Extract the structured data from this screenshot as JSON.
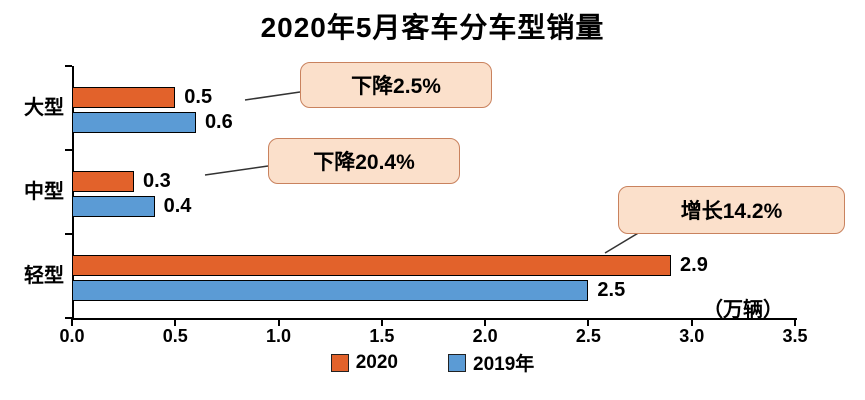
{
  "title": "2020年5月客车分车型销量",
  "chart_data": {
    "type": "bar",
    "orientation": "horizontal",
    "title": "2020年5月客车分车型销量",
    "categories": [
      "大型",
      "中型",
      "轻型"
    ],
    "series": [
      {
        "name": "2020",
        "color": "#E2622B",
        "values": [
          0.5,
          0.3,
          2.9
        ]
      },
      {
        "name": "2019年",
        "color": "#5B9BD5",
        "values": [
          0.6,
          0.4,
          2.5
        ]
      }
    ],
    "xlim": [
      0,
      3.5
    ],
    "x_ticks": [
      "0.0",
      "0.5",
      "1.0",
      "1.5",
      "2.0",
      "2.5",
      "3.0",
      "3.5"
    ],
    "unit_label": "（万辆）",
    "legend_position": "bottom",
    "grid": false,
    "annotations": [
      {
        "text": "下降2.5%",
        "target_category": "大型"
      },
      {
        "text": "下降20.4%",
        "target_category": "中型"
      },
      {
        "text": "增长14.2%",
        "target_category": "轻型"
      }
    ],
    "colors": {
      "callout_fill": "#FBE0CB",
      "callout_border": "#C9825E",
      "bar_border": "#000000",
      "axis": "#000000",
      "leader_line": "#333333"
    }
  }
}
